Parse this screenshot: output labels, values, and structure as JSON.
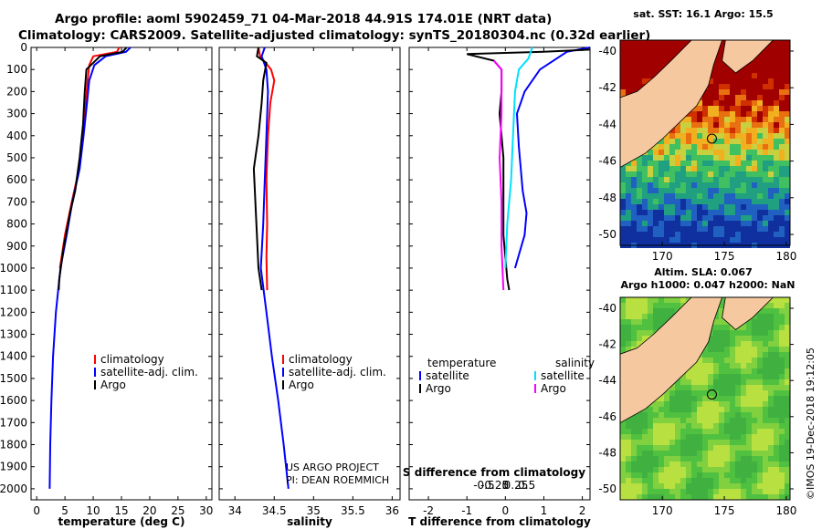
{
  "header": {
    "line1": "Argo profile: aoml 5902459_71 04-Mar-2018 44.91S 174.01E (NRT data)",
    "line2": "Climatology: CARS2009. Satellite-adjusted climatology: synTS_20180304.nc (0.32d earlier)"
  },
  "colors": {
    "climatology": "#ff0000",
    "satellite": "#0000ff",
    "argo": "#000000",
    "sat_salinity": "#00e0ff",
    "argo_salinity": "#ff00ff"
  },
  "chart_data": [
    {
      "type": "line",
      "id": "temperature",
      "xlabel": "temperature (deg C)",
      "ylabel": "",
      "xlim": [
        -1,
        31
      ],
      "ylim": [
        2050,
        0
      ],
      "xticks": [
        "0",
        "5",
        "10",
        "15",
        "20",
        "25",
        "30"
      ],
      "yticks": [
        "0",
        "100",
        "200",
        "300",
        "400",
        "500",
        "600",
        "700",
        "800",
        "900",
        "1000",
        "1100",
        "1200",
        "1300",
        "1400",
        "1500",
        "1600",
        "1700",
        "1800",
        "1900",
        "2000"
      ],
      "legend": [
        "climatology",
        "satellite-adj. clim.",
        "Argo"
      ],
      "series": [
        {
          "name": "climatology",
          "color": "#ff0000",
          "points": [
            [
              14.6,
              0
            ],
            [
              14.2,
              20
            ],
            [
              10,
              40
            ],
            [
              9.3,
              80
            ],
            [
              9.0,
              150
            ],
            [
              8.7,
              250
            ],
            [
              8.2,
              400
            ],
            [
              7.5,
              550
            ],
            [
              6.2,
              700
            ],
            [
              5.0,
              850
            ],
            [
              4.1,
              1000
            ]
          ]
        },
        {
          "name": "satellite-adj. clim.",
          "color": "#0000ff",
          "points": [
            [
              16.6,
              0
            ],
            [
              15.8,
              20
            ],
            [
              12.2,
              40
            ],
            [
              10.2,
              80
            ],
            [
              9.3,
              150
            ],
            [
              8.9,
              250
            ],
            [
              8.3,
              400
            ],
            [
              7.6,
              550
            ],
            [
              6.3,
              700
            ],
            [
              5.3,
              850
            ],
            [
              4.2,
              1000
            ],
            [
              3.4,
              1200
            ],
            [
              2.9,
              1400
            ],
            [
              2.6,
              1600
            ],
            [
              2.4,
              1800
            ],
            [
              2.3,
              2000
            ]
          ]
        },
        {
          "name": "Argo",
          "color": "#000000",
          "points": [
            [
              15.9,
              0
            ],
            [
              15.2,
              20
            ],
            [
              11.2,
              40
            ],
            [
              8.8,
              100
            ],
            [
              8.5,
              200
            ],
            [
              8.2,
              350
            ],
            [
              7.6,
              500
            ],
            [
              6.8,
              650
            ],
            [
              5.9,
              750
            ],
            [
              4.8,
              900
            ],
            [
              4.0,
              1050
            ],
            [
              3.9,
              1100
            ]
          ]
        }
      ]
    },
    {
      "type": "line",
      "id": "salinity",
      "xlabel": "salinity",
      "ylabel": "",
      "xlim": [
        33.8,
        36.1
      ],
      "ylim": [
        2050,
        0
      ],
      "xticks": [
        "34",
        "34.5",
        "35",
        "35.5",
        "36"
      ],
      "legend": [
        "climatology",
        "satellite-adj. clim.",
        "Argo"
      ],
      "series": [
        {
          "name": "climatology",
          "color": "#ff0000",
          "points": [
            [
              34.3,
              0
            ],
            [
              34.32,
              40
            ],
            [
              34.46,
              100
            ],
            [
              34.5,
              150
            ],
            [
              34.45,
              250
            ],
            [
              34.42,
              400
            ],
            [
              34.4,
              600
            ],
            [
              34.41,
              800
            ],
            [
              34.4,
              950
            ],
            [
              34.41,
              1100
            ]
          ]
        },
        {
          "name": "satellite-adj. clim.",
          "color": "#0000ff",
          "points": [
            [
              34.38,
              0
            ],
            [
              34.34,
              40
            ],
            [
              34.4,
              100
            ],
            [
              34.42,
              200
            ],
            [
              34.4,
              400
            ],
            [
              34.38,
              600
            ],
            [
              34.36,
              800
            ],
            [
              34.33,
              1000
            ],
            [
              34.4,
              1200
            ],
            [
              34.47,
              1400
            ],
            [
              34.55,
              1600
            ],
            [
              34.62,
              1800
            ],
            [
              34.68,
              2000
            ]
          ]
        },
        {
          "name": "Argo",
          "color": "#000000",
          "points": [
            [
              34.3,
              0
            ],
            [
              34.28,
              40
            ],
            [
              34.4,
              70
            ],
            [
              34.36,
              150
            ],
            [
              34.34,
              250
            ],
            [
              34.3,
              400
            ],
            [
              34.24,
              550
            ],
            [
              34.26,
              700
            ],
            [
              34.28,
              850
            ],
            [
              34.3,
              1000
            ],
            [
              34.34,
              1100
            ]
          ]
        }
      ]
    },
    {
      "type": "line",
      "id": "difference",
      "xlabel": "T difference from climatology",
      "xlabel2": "S difference from climatology",
      "xlim": [
        -2.5,
        2.2
      ],
      "ylim": [
        2050,
        0
      ],
      "xticks": [
        "-2",
        "-1",
        "0",
        "1",
        "2"
      ],
      "xticks2": [
        "-0.5",
        "-0.25",
        "0",
        "0.25",
        "0.5"
      ],
      "legend_titles": [
        "temperature",
        "salinity"
      ],
      "legend": [
        "satellite",
        "Argo",
        "satellite",
        "Argo"
      ],
      "series": [
        {
          "name": "temperature satellite",
          "color": "#0000ff",
          "points": [
            [
              2.2,
              0
            ],
            [
              1.6,
              20
            ],
            [
              0.9,
              100
            ],
            [
              0.5,
              200
            ],
            [
              0.3,
              300
            ],
            [
              0.35,
              450
            ],
            [
              0.4,
              550
            ],
            [
              0.45,
              650
            ],
            [
              0.55,
              750
            ],
            [
              0.5,
              850
            ],
            [
              0.25,
              1000
            ]
          ]
        },
        {
          "name": "temperature Argo",
          "color": "#000000",
          "points": [
            [
              2.2,
              10
            ],
            [
              1.0,
              20
            ],
            [
              -1.0,
              30
            ],
            [
              -0.3,
              60
            ],
            [
              -0.1,
              100
            ],
            [
              -0.1,
              200
            ],
            [
              -0.15,
              300
            ],
            [
              -0.05,
              500
            ],
            [
              -0.05,
              700
            ],
            [
              -0.05,
              850
            ],
            [
              0.05,
              1050
            ],
            [
              0.1,
              1100
            ]
          ]
        },
        {
          "name": "salinity satellite",
          "color": "#00e0ff",
          "points": [
            [
              0.7,
              0
            ],
            [
              0.6,
              50
            ],
            [
              0.35,
              100
            ],
            [
              0.25,
              200
            ],
            [
              0.2,
              400
            ],
            [
              0.15,
              600
            ],
            [
              0.05,
              800
            ],
            [
              0,
              1000
            ]
          ]
        },
        {
          "name": "salinity Argo",
          "color": "#ff00ff",
          "points": [
            [
              -0.3,
              60
            ],
            [
              -0.1,
              100
            ],
            [
              -0.1,
              300
            ],
            [
              -0.15,
              500
            ],
            [
              -0.1,
              700
            ],
            [
              -0.1,
              900
            ],
            [
              -0.05,
              1100
            ]
          ]
        }
      ]
    }
  ],
  "footer": {
    "project": "US ARGO PROJECT",
    "pi": "PI: DEAN ROEMMICH"
  },
  "maps": [
    {
      "title": "sat. SST: 16.1 Argo: 15.5",
      "xticks": [
        "170",
        "175",
        "180"
      ],
      "yticks": [
        "-40",
        "-42",
        "-44",
        "-46",
        "-48",
        "-50"
      ]
    },
    {
      "title": "Altim. SLA: 0.067",
      "subtitle": "Argo h1000: 0.047 h2000: NaN",
      "xticks": [
        "170",
        "175",
        "180"
      ],
      "yticks": [
        "-40",
        "-42",
        "-44",
        "-46",
        "-48",
        "-50"
      ]
    }
  ],
  "stamp": "©IMOS 19-Dec-2018 19:12:05"
}
